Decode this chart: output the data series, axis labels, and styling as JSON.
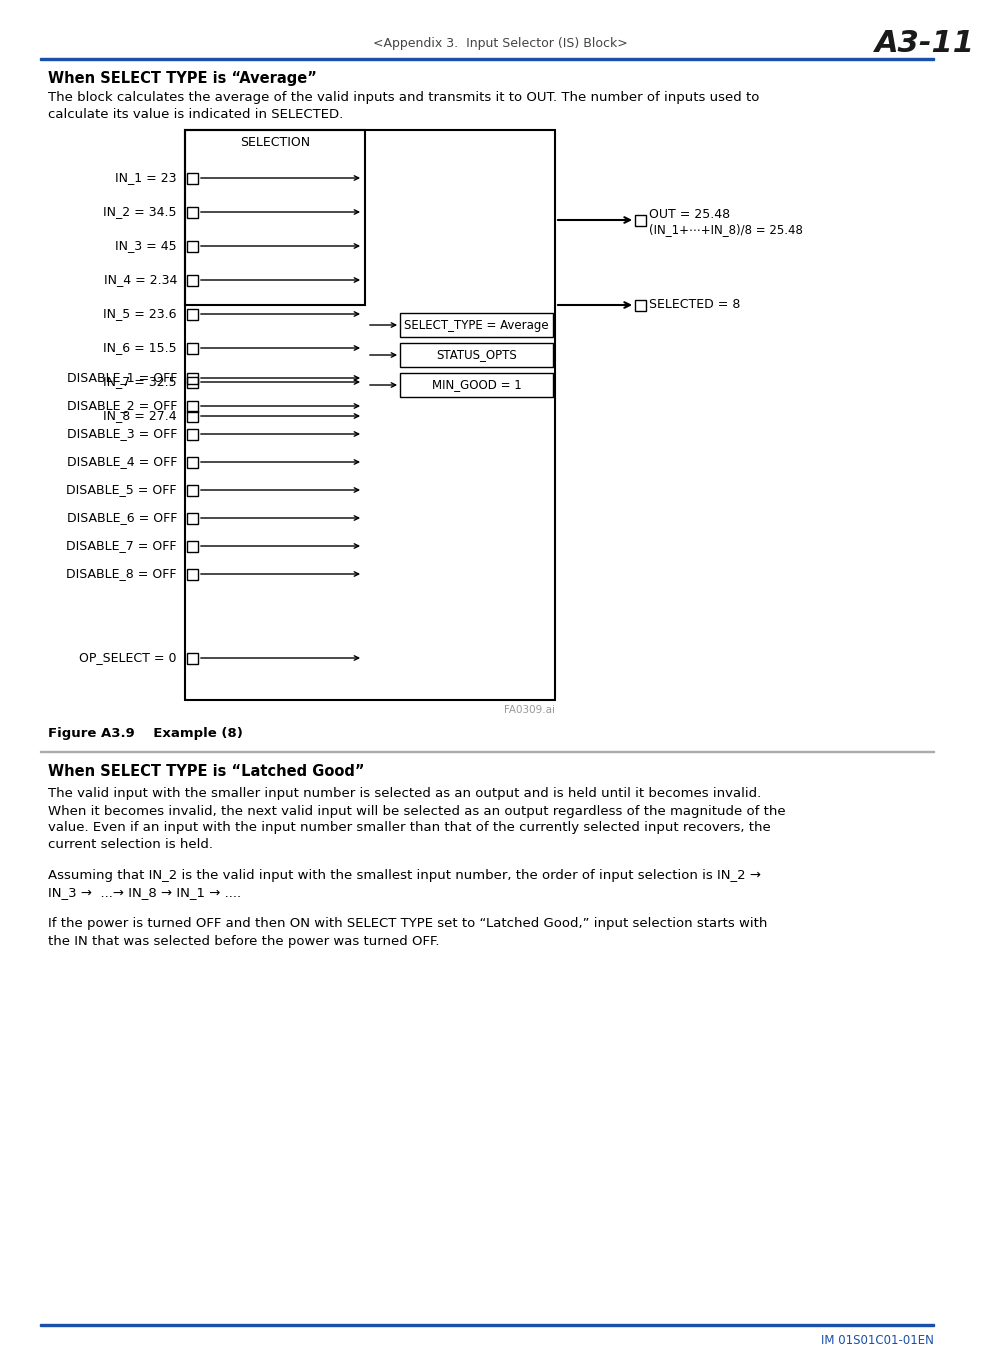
{
  "page_header_left": "<Appendix 3.  Input Selector (IS) Block>",
  "page_header_right": "A3-11",
  "section1_title": "When SELECT TYPE is “Average”",
  "section1_text1": "The block calculates the average of the valid inputs and transmits it to OUT. The number of inputs used to",
  "section1_text2": "calculate its value is indicated in SELECTED.",
  "diagram_label": "SELECTION",
  "in_labels": [
    "IN_1 = 23",
    "IN_2 = 34.5",
    "IN_3 = 45",
    "IN_4 = 2.34",
    "IN_5 = 23.6",
    "IN_6 = 15.5",
    "IN_7 = 32.5",
    "IN_8 = 27.4"
  ],
  "disable_labels": [
    "DISABLE_1 = OFF",
    "DISABLE_2 = OFF",
    "DISABLE_3 = OFF",
    "DISABLE_4 = OFF",
    "DISABLE_5 = OFF",
    "DISABLE_6 = OFF",
    "DISABLE_7 = OFF",
    "DISABLE_8 = OFF"
  ],
  "op_select_label": "OP_SELECT = 0",
  "out_label1": "OUT = 25.48",
  "out_label2": "(IN_1+⋯+IN_8)/8 = 25.48",
  "selected_label": "SELECTED = 8",
  "select_type_box": "SELECT_TYPE = Average",
  "status_opts_box": "STATUS_OPTS",
  "min_good_box": "MIN_GOOD = 1",
  "figure_label": "Figure A3.9    Example (8)",
  "section2_title": "When SELECT TYPE is “Latched Good”",
  "section2_p1_lines": [
    "The valid input with the smaller input number is selected as an output and is held until it becomes invalid.",
    "When it becomes invalid, the next valid input will be selected as an output regardless of the magnitude of the",
    "value. Even if an input with the input number smaller than that of the currently selected input recovers, the",
    "current selection is held."
  ],
  "section2_p2_lines": [
    "Assuming that IN_2 is the valid input with the smallest input number, the order of input selection is IN_2 →",
    "IN_3 →  ...→ IN_8 → IN_1 → ...."
  ],
  "section2_p3_lines": [
    "If the power is turned OFF and then ON with SELECT TYPE set to “Latched Good,” input selection starts with",
    "the IN that was selected before the power was turned OFF."
  ],
  "footer_text": "IM 01S01C01-01EN",
  "watermark": "FA0309.ai",
  "header_line_color": "#1a4faa",
  "footer_line_color": "#1a4faa"
}
